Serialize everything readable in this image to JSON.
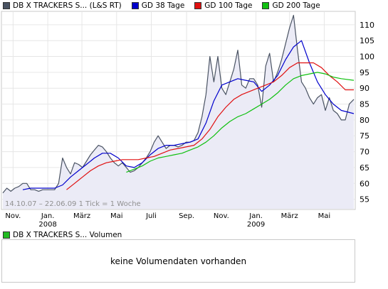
{
  "legend": [
    {
      "label": "DB X TRACKERS S... (L&S RT)",
      "color": "#4a5363"
    },
    {
      "label": "GD 38 Tage",
      "color": "#0000cc"
    },
    {
      "label": "GD 100 Tage",
      "color": "#e01010"
    },
    {
      "label": "GD 200 Tage",
      "color": "#10c010"
    }
  ],
  "date_range_label": "14.10.07 – 22.06.09   1 Tick = 1 Woche",
  "volume": {
    "legend_label": "DB X TRACKERS S... Volumen",
    "legend_color": "#22bb22",
    "empty_message": "keine Volumendaten vorhanden"
  },
  "chart_data": {
    "type": "line",
    "x_start": "2007-10-14",
    "x_end": "2009-06-22",
    "tick": "1 Woche",
    "ylim": [
      52,
      114
    ],
    "y_ticks": [
      55,
      60,
      65,
      70,
      75,
      80,
      85,
      90,
      95,
      100,
      105,
      110
    ],
    "x_tick_labels": [
      {
        "label": "Nov.",
        "date": "2007-11-01"
      },
      {
        "label": "Jan.",
        "sublabel": "2008",
        "date": "2008-01-01"
      },
      {
        "label": "März",
        "date": "2008-03-01"
      },
      {
        "label": "Mai",
        "date": "2008-05-01"
      },
      {
        "label": "Juli",
        "date": "2008-07-01"
      },
      {
        "label": "Sep.",
        "date": "2008-09-01"
      },
      {
        "label": "Nov.",
        "date": "2008-11-01"
      },
      {
        "label": "Jan.",
        "sublabel": "2009",
        "date": "2009-01-01"
      },
      {
        "label": "März",
        "date": "2009-03-01"
      },
      {
        "label": "Mai",
        "date": "2009-05-01"
      }
    ],
    "grid": true,
    "series": [
      {
        "name": "DB X TRACKERS S... (L&S RT)",
        "color": "#4a5363",
        "fill": "#ebebf6",
        "points": [
          [
            "2007-10-14",
            57
          ],
          [
            "2007-10-21",
            58.5
          ],
          [
            "2007-10-28",
            57.5
          ],
          [
            "2007-11-04",
            58.5
          ],
          [
            "2007-11-11",
            59
          ],
          [
            "2007-11-18",
            60
          ],
          [
            "2007-11-25",
            60
          ],
          [
            "2007-12-02",
            58
          ],
          [
            "2007-12-09",
            58
          ],
          [
            "2007-12-16",
            57.5
          ],
          [
            "2007-12-23",
            58
          ],
          [
            "2007-12-30",
            58
          ],
          [
            "2008-01-06",
            58
          ],
          [
            "2008-01-13",
            58
          ],
          [
            "2008-01-20",
            60
          ],
          [
            "2008-01-27",
            68
          ],
          [
            "2008-02-03",
            65
          ],
          [
            "2008-02-10",
            63
          ],
          [
            "2008-02-17",
            66.5
          ],
          [
            "2008-02-24",
            66
          ],
          [
            "2008-03-02",
            65
          ],
          [
            "2008-03-09",
            67
          ],
          [
            "2008-03-16",
            69
          ],
          [
            "2008-03-23",
            70.5
          ],
          [
            "2008-03-30",
            72
          ],
          [
            "2008-04-06",
            71.5
          ],
          [
            "2008-04-13",
            70
          ],
          [
            "2008-04-20",
            68
          ],
          [
            "2008-04-27",
            66.5
          ],
          [
            "2008-05-04",
            65.5
          ],
          [
            "2008-05-11",
            66.5
          ],
          [
            "2008-05-18",
            65
          ],
          [
            "2008-05-25",
            63.5
          ],
          [
            "2008-06-01",
            64
          ],
          [
            "2008-06-08",
            65
          ],
          [
            "2008-06-15",
            66.5
          ],
          [
            "2008-06-22",
            68
          ],
          [
            "2008-06-29",
            70
          ],
          [
            "2008-07-06",
            73
          ],
          [
            "2008-07-13",
            75
          ],
          [
            "2008-07-20",
            73
          ],
          [
            "2008-07-27",
            71
          ],
          [
            "2008-08-03",
            72
          ],
          [
            "2008-08-10",
            72
          ],
          [
            "2008-08-17",
            71.5
          ],
          [
            "2008-08-24",
            72
          ],
          [
            "2008-08-31",
            73
          ],
          [
            "2008-09-07",
            73
          ],
          [
            "2008-09-14",
            73.5
          ],
          [
            "2008-09-21",
            76
          ],
          [
            "2008-09-28",
            81
          ],
          [
            "2008-10-05",
            88
          ],
          [
            "2008-10-12",
            100
          ],
          [
            "2008-10-19",
            92
          ],
          [
            "2008-10-26",
            100
          ],
          [
            "2008-11-02",
            90
          ],
          [
            "2008-11-09",
            88
          ],
          [
            "2008-11-16",
            92
          ],
          [
            "2008-11-23",
            96
          ],
          [
            "2008-11-30",
            102
          ],
          [
            "2008-12-07",
            91
          ],
          [
            "2008-12-14",
            90
          ],
          [
            "2008-12-21",
            93
          ],
          [
            "2008-12-28",
            93
          ],
          [
            "2009-01-04",
            91
          ],
          [
            "2009-01-11",
            84
          ],
          [
            "2009-01-18",
            97
          ],
          [
            "2009-01-25",
            101
          ],
          [
            "2009-02-01",
            92
          ],
          [
            "2009-02-08",
            95
          ],
          [
            "2009-02-15",
            99
          ],
          [
            "2009-02-22",
            104
          ],
          [
            "2009-03-01",
            109
          ],
          [
            "2009-03-08",
            113
          ],
          [
            "2009-03-15",
            102
          ],
          [
            "2009-03-22",
            92
          ],
          [
            "2009-03-29",
            90
          ],
          [
            "2009-04-05",
            87
          ],
          [
            "2009-04-12",
            85
          ],
          [
            "2009-04-19",
            87
          ],
          [
            "2009-04-26",
            88
          ],
          [
            "2009-05-03",
            83
          ],
          [
            "2009-05-10",
            87
          ],
          [
            "2009-05-17",
            83
          ],
          [
            "2009-05-24",
            82
          ],
          [
            "2009-05-31",
            80
          ],
          [
            "2009-06-07",
            80
          ],
          [
            "2009-06-14",
            85
          ],
          [
            "2009-06-22",
            86.5
          ]
        ]
      },
      {
        "name": "GD 38 Tage",
        "color": "#0000cc",
        "points": [
          [
            "2007-11-18",
            58
          ],
          [
            "2007-12-02",
            58.5
          ],
          [
            "2007-12-16",
            58.5
          ],
          [
            "2007-12-30",
            58.5
          ],
          [
            "2008-01-13",
            58.5
          ],
          [
            "2008-01-27",
            59.5
          ],
          [
            "2008-02-10",
            62
          ],
          [
            "2008-02-24",
            64
          ],
          [
            "2008-03-09",
            66
          ],
          [
            "2008-03-23",
            68
          ],
          [
            "2008-04-06",
            69.5
          ],
          [
            "2008-04-20",
            69.5
          ],
          [
            "2008-05-04",
            68
          ],
          [
            "2008-05-18",
            65.5
          ],
          [
            "2008-06-01",
            65
          ],
          [
            "2008-06-15",
            66.5
          ],
          [
            "2008-06-29",
            69
          ],
          [
            "2008-07-13",
            71
          ],
          [
            "2008-07-27",
            72
          ],
          [
            "2008-08-10",
            72
          ],
          [
            "2008-08-24",
            72.5
          ],
          [
            "2008-09-07",
            73
          ],
          [
            "2008-09-21",
            74
          ],
          [
            "2008-10-05",
            79
          ],
          [
            "2008-10-19",
            86
          ],
          [
            "2008-11-02",
            91
          ],
          [
            "2008-11-16",
            92
          ],
          [
            "2008-11-30",
            93
          ],
          [
            "2008-12-14",
            92.5
          ],
          [
            "2008-12-28",
            92
          ],
          [
            "2009-01-11",
            89
          ],
          [
            "2009-01-25",
            91
          ],
          [
            "2009-02-08",
            94
          ],
          [
            "2009-02-22",
            99
          ],
          [
            "2009-03-08",
            103
          ],
          [
            "2009-03-22",
            105
          ],
          [
            "2009-04-05",
            98
          ],
          [
            "2009-04-19",
            92
          ],
          [
            "2009-05-03",
            88
          ],
          [
            "2009-05-17",
            85
          ],
          [
            "2009-05-31",
            83
          ],
          [
            "2009-06-22",
            82
          ]
        ]
      },
      {
        "name": "GD 100 Tage",
        "color": "#e01010",
        "points": [
          [
            "2008-02-03",
            58
          ],
          [
            "2008-02-17",
            60
          ],
          [
            "2008-03-02",
            62
          ],
          [
            "2008-03-16",
            64
          ],
          [
            "2008-03-30",
            65.5
          ],
          [
            "2008-04-13",
            66.5
          ],
          [
            "2008-04-27",
            67
          ],
          [
            "2008-05-11",
            67.5
          ],
          [
            "2008-05-25",
            67.5
          ],
          [
            "2008-06-08",
            67.5
          ],
          [
            "2008-06-22",
            68
          ],
          [
            "2008-07-06",
            68.5
          ],
          [
            "2008-07-20",
            69.5
          ],
          [
            "2008-08-03",
            70.5
          ],
          [
            "2008-08-17",
            71
          ],
          [
            "2008-08-31",
            71.5
          ],
          [
            "2008-09-14",
            72
          ],
          [
            "2008-09-28",
            74
          ],
          [
            "2008-10-12",
            77
          ],
          [
            "2008-10-26",
            81
          ],
          [
            "2008-11-09",
            84
          ],
          [
            "2008-11-23",
            86.5
          ],
          [
            "2008-12-07",
            88
          ],
          [
            "2008-12-21",
            89
          ],
          [
            "2009-01-04",
            90
          ],
          [
            "2009-01-18",
            91
          ],
          [
            "2009-02-01",
            92
          ],
          [
            "2009-02-15",
            94
          ],
          [
            "2009-03-01",
            96.5
          ],
          [
            "2009-03-15",
            98
          ],
          [
            "2009-03-29",
            98
          ],
          [
            "2009-04-12",
            98
          ],
          [
            "2009-04-26",
            96.5
          ],
          [
            "2009-05-10",
            94
          ],
          [
            "2009-05-24",
            92
          ],
          [
            "2009-06-07",
            89.5
          ],
          [
            "2009-06-22",
            89.5
          ]
        ]
      },
      {
        "name": "GD 200 Tage",
        "color": "#10c010",
        "points": [
          [
            "2008-05-18",
            63.5
          ],
          [
            "2008-06-01",
            64.5
          ],
          [
            "2008-06-15",
            65.5
          ],
          [
            "2008-06-29",
            67
          ],
          [
            "2008-07-13",
            68
          ],
          [
            "2008-07-27",
            68.5
          ],
          [
            "2008-08-10",
            69
          ],
          [
            "2008-08-24",
            69.5
          ],
          [
            "2008-09-07",
            70.5
          ],
          [
            "2008-09-21",
            71.5
          ],
          [
            "2008-10-05",
            73
          ],
          [
            "2008-10-19",
            75
          ],
          [
            "2008-11-02",
            77.5
          ],
          [
            "2008-11-16",
            79.5
          ],
          [
            "2008-11-30",
            81
          ],
          [
            "2008-12-14",
            82
          ],
          [
            "2008-12-28",
            83.5
          ],
          [
            "2009-01-11",
            85
          ],
          [
            "2009-01-25",
            86.5
          ],
          [
            "2009-02-08",
            88.5
          ],
          [
            "2009-02-22",
            91
          ],
          [
            "2009-03-08",
            93
          ],
          [
            "2009-03-22",
            94
          ],
          [
            "2009-04-05",
            94.5
          ],
          [
            "2009-04-19",
            95
          ],
          [
            "2009-05-03",
            94.5
          ],
          [
            "2009-05-17",
            93.5
          ],
          [
            "2009-05-31",
            93
          ],
          [
            "2009-06-22",
            92.5
          ]
        ]
      }
    ]
  }
}
